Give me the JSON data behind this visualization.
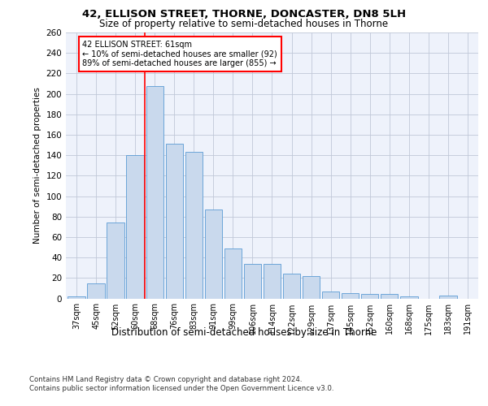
{
  "title1": "42, ELLISON STREET, THORNE, DONCASTER, DN8 5LH",
  "title2": "Size of property relative to semi-detached houses in Thorne",
  "xlabel": "Distribution of semi-detached houses by size in Thorne",
  "ylabel": "Number of semi-detached properties",
  "categories": [
    "37sqm",
    "45sqm",
    "52sqm",
    "60sqm",
    "68sqm",
    "76sqm",
    "83sqm",
    "91sqm",
    "99sqm",
    "106sqm",
    "114sqm",
    "122sqm",
    "129sqm",
    "137sqm",
    "145sqm",
    "152sqm",
    "160sqm",
    "168sqm",
    "175sqm",
    "183sqm",
    "191sqm"
  ],
  "values": [
    2,
    15,
    74,
    140,
    208,
    151,
    143,
    87,
    49,
    34,
    34,
    24,
    22,
    7,
    5,
    4,
    4,
    2,
    0,
    3,
    0
  ],
  "bar_color": "#c9d9ed",
  "bar_edge_color": "#5b9bd5",
  "red_line_x": 3.5,
  "annotation_text": "42 ELLISON STREET: 61sqm\n← 10% of semi-detached houses are smaller (92)\n89% of semi-detached houses are larger (855) →",
  "annotation_box_color": "white",
  "annotation_box_edge": "red",
  "footer1": "Contains HM Land Registry data © Crown copyright and database right 2024.",
  "footer2": "Contains public sector information licensed under the Open Government Licence v3.0.",
  "bg_color": "#eef2fb",
  "grid_color": "#c0c8d8",
  "ylim": [
    0,
    260
  ],
  "yticks": [
    0,
    20,
    40,
    60,
    80,
    100,
    120,
    140,
    160,
    180,
    200,
    220,
    240,
    260
  ]
}
